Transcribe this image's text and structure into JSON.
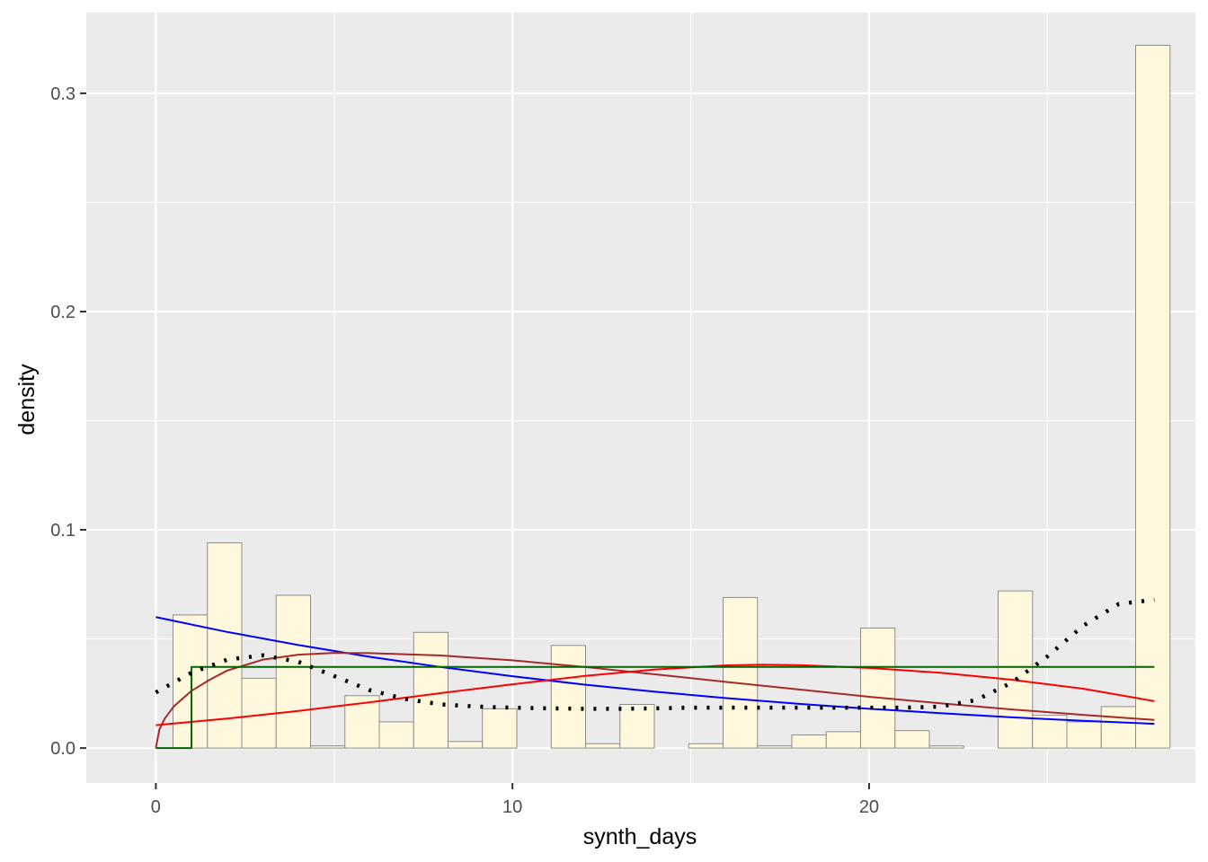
{
  "chart_data": {
    "type": "bar",
    "title": "",
    "xlabel": "synth_days",
    "ylabel": "density",
    "xlim": [
      -1.95,
      29.15
    ],
    "ylim": [
      -0.016,
      0.337
    ],
    "x_ticks": [
      0,
      10,
      20
    ],
    "y_ticks": [
      0.0,
      0.1,
      0.2,
      0.3
    ],
    "x_tick_labels": [
      "0",
      "10",
      "20"
    ],
    "y_tick_labels": [
      "0.0",
      "0.1",
      "0.2",
      "0.3"
    ],
    "grid": true,
    "colors": {
      "panel": "#EBEBEB",
      "grid": "#FFFFFF",
      "bar_fill": "#FFF8DC",
      "bar_stroke": "#8C8C8C",
      "exponential": "#0000FF",
      "gamma": "#A52A2A",
      "normal": "#FF0000",
      "uniform": "#006400",
      "density": "#000000"
    },
    "histogram": {
      "bin_width": 0.964,
      "bin_starts": [
        -0.482,
        0.482,
        1.446,
        2.41,
        3.374,
        4.338,
        5.302,
        6.266,
        7.23,
        8.194,
        9.158,
        10.122,
        11.086,
        12.05,
        13.014,
        13.978,
        14.942,
        15.906,
        16.87,
        17.834,
        18.798,
        19.762,
        20.726,
        21.69,
        22.654,
        23.618,
        24.582,
        25.546,
        26.51,
        27.474
      ],
      "density": [
        0.0,
        0.061,
        0.094,
        0.032,
        0.07,
        0.001,
        0.024,
        0.012,
        0.053,
        0.003,
        0.018,
        0.0,
        0.047,
        0.002,
        0.02,
        0.0,
        0.002,
        0.069,
        0.001,
        0.006,
        0.0075,
        0.055,
        0.008,
        0.001,
        0.0,
        0.072,
        0.015,
        0.012,
        0.019,
        0.322
      ]
    },
    "series": [
      {
        "style": "solid",
        "color": "#0000FF",
        "x": [
          0,
          2,
          4,
          6,
          8,
          10,
          12,
          14,
          16,
          18,
          20,
          22,
          24,
          26,
          28
        ],
        "y": [
          0.06,
          0.0532,
          0.0472,
          0.0418,
          0.0371,
          0.0329,
          0.0291,
          0.0258,
          0.0229,
          0.0203,
          0.018,
          0.016,
          0.0141,
          0.0125,
          0.0111
        ]
      },
      {
        "style": "solid",
        "color": "#A52A2A",
        "x": [
          0,
          0.1,
          0.25,
          0.5,
          1,
          1.5,
          2,
          3,
          4,
          5,
          6,
          8,
          10,
          12,
          14,
          16,
          18,
          20,
          22,
          24,
          26,
          28
        ],
        "y": [
          0.0,
          0.0085,
          0.0135,
          0.019,
          0.0262,
          0.0312,
          0.0355,
          0.0405,
          0.0428,
          0.0436,
          0.0435,
          0.0424,
          0.0402,
          0.0372,
          0.0338,
          0.0303,
          0.0269,
          0.0235,
          0.0205,
          0.0177,
          0.0152,
          0.0129
        ]
      },
      {
        "style": "solid",
        "color": "#FF0000",
        "x": [
          0,
          2,
          4,
          6,
          8,
          10,
          12,
          14,
          16,
          17,
          18,
          20,
          22,
          24,
          26,
          28
        ],
        "y": [
          0.0105,
          0.0135,
          0.017,
          0.021,
          0.0252,
          0.0292,
          0.033,
          0.036,
          0.0379,
          0.0382,
          0.038,
          0.0367,
          0.0345,
          0.0313,
          0.0272,
          0.0215
        ]
      },
      {
        "style": "step",
        "color": "#006400",
        "x": [
          0,
          1,
          1,
          28
        ],
        "y": [
          0.0,
          0.0,
          0.0372,
          0.0372
        ]
      },
      {
        "style": "dotted",
        "color": "#000000",
        "x": [
          0,
          1,
          2,
          3,
          4,
          5,
          6,
          7,
          8,
          9,
          10,
          11,
          12,
          13,
          14,
          15,
          16,
          17,
          18,
          19,
          20,
          21,
          22,
          23,
          24,
          25,
          26,
          27,
          28
        ],
        "y": [
          0.0255,
          0.0345,
          0.0405,
          0.0425,
          0.0395,
          0.033,
          0.0265,
          0.0225,
          0.02,
          0.019,
          0.0185,
          0.0182,
          0.018,
          0.018,
          0.0182,
          0.0185,
          0.0185,
          0.0185,
          0.0185,
          0.0185,
          0.0185,
          0.0185,
          0.019,
          0.022,
          0.03,
          0.042,
          0.056,
          0.066,
          0.068
        ]
      }
    ]
  }
}
